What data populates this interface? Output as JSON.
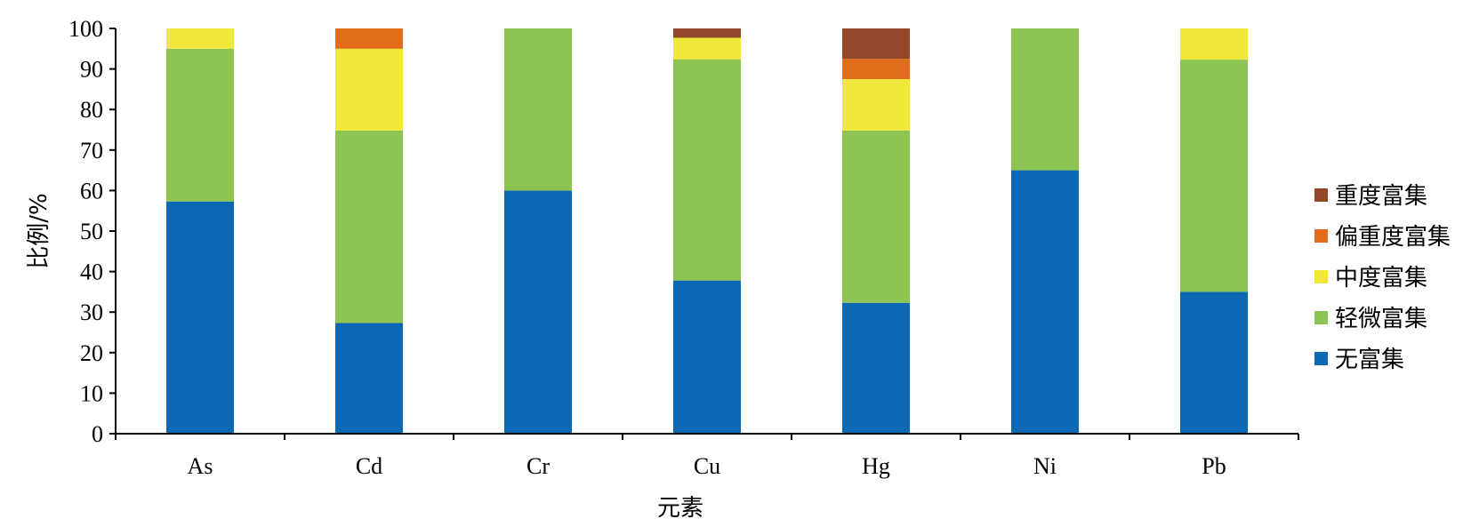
{
  "chart_data": {
    "type": "bar",
    "stacked": true,
    "title": "",
    "xlabel": "元素",
    "ylabel": "比例/%",
    "ylim": [
      0,
      100
    ],
    "yticks": [
      0,
      10,
      20,
      30,
      40,
      50,
      60,
      70,
      80,
      90,
      100
    ],
    "grid": false,
    "legend_position": "right",
    "categories": [
      "As",
      "Cd",
      "Cr",
      "Cu",
      "Hg",
      "Ni",
      "Pb"
    ],
    "series": [
      {
        "name": "无富集",
        "color": "#0d68b3",
        "values": [
          57.3,
          27.3,
          60.0,
          37.8,
          32.3,
          65.0,
          35.0
        ]
      },
      {
        "name": "轻微富集",
        "color": "#8dc452",
        "values": [
          37.7,
          47.5,
          40.0,
          54.6,
          42.5,
          35.0,
          57.3
        ]
      },
      {
        "name": "中度富集",
        "color": "#f0e63c",
        "values": [
          5.0,
          20.2,
          0,
          5.3,
          12.7,
          0,
          7.7
        ]
      },
      {
        "name": "偏重度富集",
        "color": "#e06c1c",
        "values": [
          0,
          5.0,
          0,
          0,
          5.0,
          0,
          0
        ]
      },
      {
        "name": "重度富集",
        "color": "#94482a",
        "values": [
          0,
          0,
          0,
          2.3,
          7.5,
          0,
          0
        ]
      }
    ]
  }
}
